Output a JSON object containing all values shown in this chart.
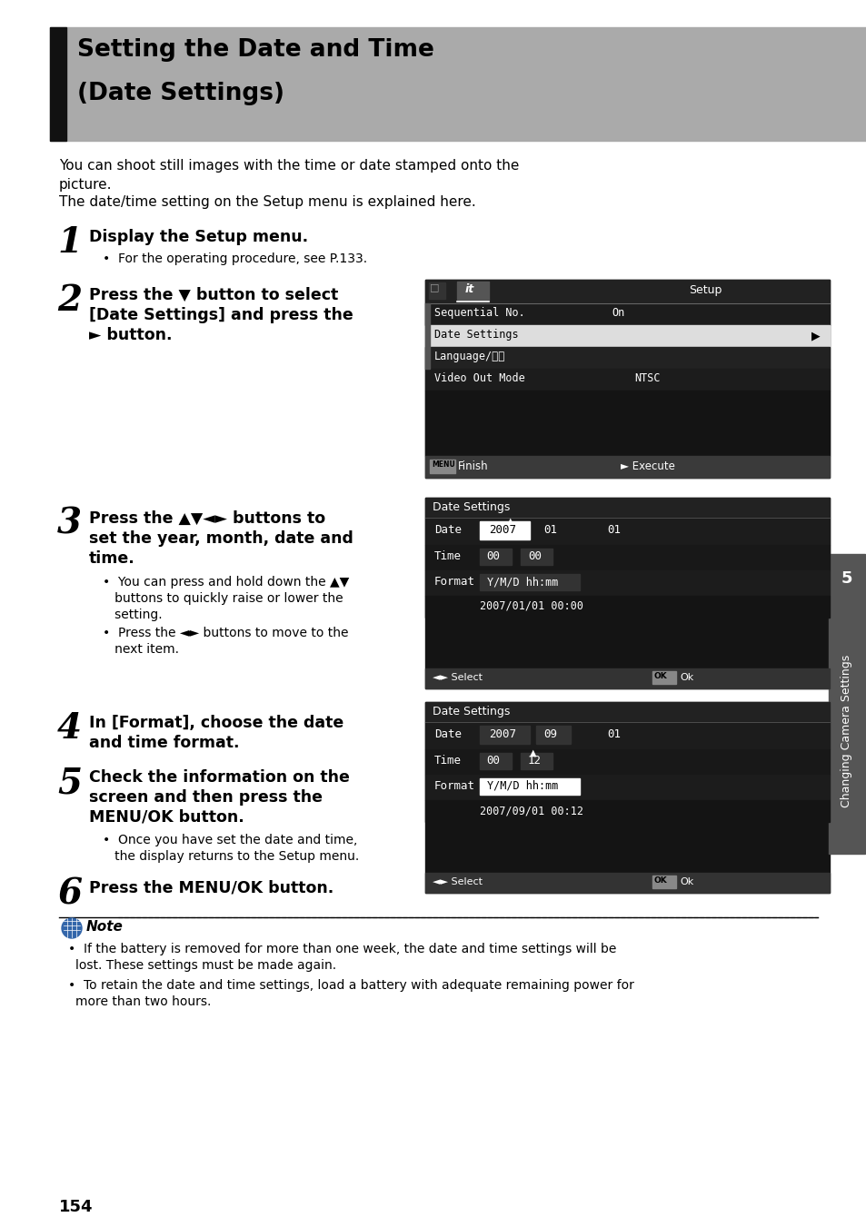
{
  "page_bg": "#ffffff",
  "header_bg": "#aaaaaa",
  "header_black_bar_color": "#111111",
  "header_title_line1": "Setting the Date and Time",
  "header_title_line2": "(Date Settings)",
  "body_text1": "You can shoot still images with the time or date stamped onto the\npicture.",
  "body_text2": "The date/time setting on the Setup menu is explained here.",
  "step1_num": "1",
  "step1_text": "Display the Setup menu.",
  "step1_sub": "For the operating procedure, see P.133.",
  "step2_num": "2",
  "step2_text_a": "Press the ▼ button to select",
  "step2_text_b": "[Date Settings] and press the",
  "step2_text_c": "► button.",
  "step3_num": "3",
  "step3_text_a": "Press the ▲▼◄► buttons to",
  "step3_text_b": "set the year, month, date and",
  "step3_text_c": "time.",
  "step3_sub1a": "You can press and hold down the ▲▼",
  "step3_sub1b": "buttons to quickly raise or lower the",
  "step3_sub1c": "setting.",
  "step3_sub2a": "Press the ◄► buttons to move to the",
  "step3_sub2b": "next item.",
  "step4_num": "4",
  "step4_text_a": "In [Format], choose the date",
  "step4_text_b": "and time format.",
  "step5_num": "5",
  "step5_text_a": "Check the information on the",
  "step5_text_b": "screen and then press the",
  "step5_text_c": "MENU/OK button.",
  "step5_sub1": "Once you have set the date and time,",
  "step5_sub2": "the display returns to the Setup menu.",
  "step6_num": "6",
  "step6_text": "Press the MENU/OK button.",
  "note_bullet1a": "If the battery is removed for more than one week, the date and time settings will be",
  "note_bullet1b": "lost. These settings must be made again.",
  "note_bullet2a": "To retain the date and time settings, load a battery with adequate remaining power for",
  "note_bullet2b": "more than two hours.",
  "page_num": "154",
  "sidebar_text": "Changing Camera Settings",
  "sidebar_num": "5",
  "screen_bg": "#141414",
  "screen_dark_row": "#1e1e1e",
  "screen_mid_row": "#2a2a2a",
  "screen_white": "#ffffff",
  "screen_gray_row": "#383838",
  "screen_bottom_bar": "#3c3c3c",
  "screen_btn_gray": "#888888"
}
